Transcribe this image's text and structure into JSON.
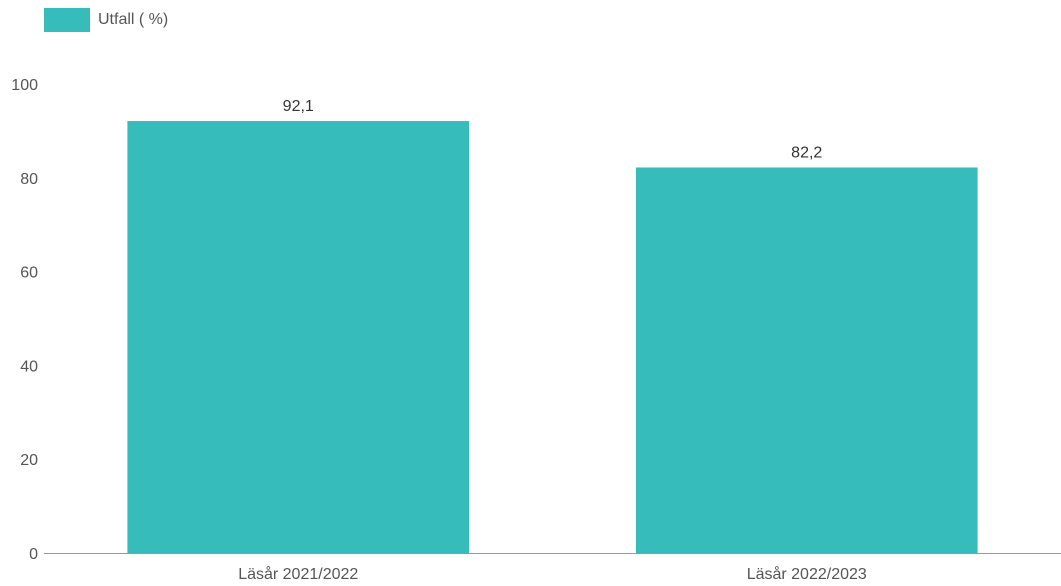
{
  "chart_data": {
    "type": "bar",
    "categories": [
      "Läsår 2021/2022",
      "Läsår 2022/2023"
    ],
    "series": [
      {
        "name": "Utfall ( %)",
        "values": [
          92.1,
          82.2
        ],
        "labels": [
          "92,1",
          "82,2"
        ],
        "color": "#37bcbc"
      }
    ],
    "ylim": [
      0,
      100
    ],
    "yticks": [
      0,
      20,
      40,
      60,
      80,
      100
    ],
    "legend": "top-left",
    "grid": false
  }
}
